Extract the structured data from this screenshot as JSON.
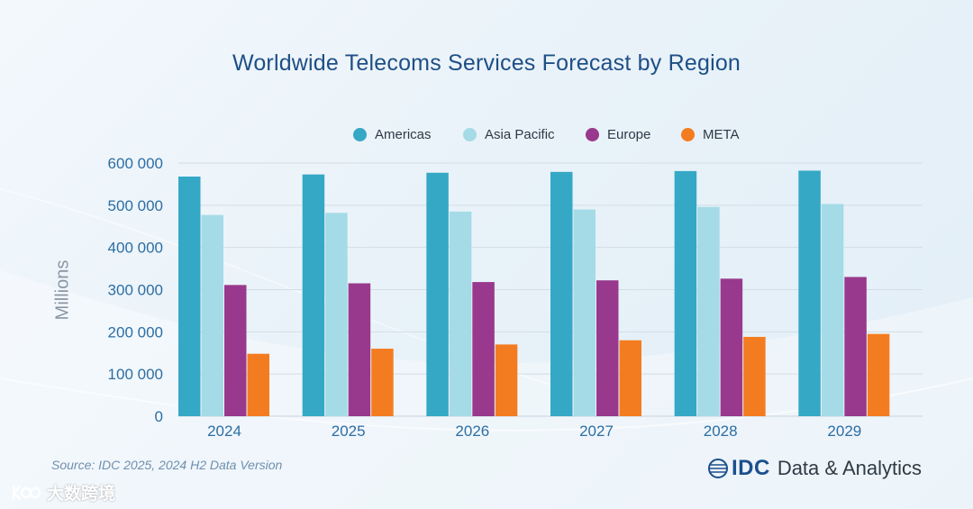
{
  "title": "Worldwide Telecoms Services Forecast by Region",
  "legend": [
    {
      "label": "Americas",
      "color": "#35a8c6"
    },
    {
      "label": "Asia Pacific",
      "color": "#a4dbe6"
    },
    {
      "label": "Europe",
      "color": "#98398d"
    },
    {
      "label": "META",
      "color": "#f47c20"
    }
  ],
  "footer": {
    "source": "Source: IDC 2025, 2024 H2 Data Version",
    "brand_name": "IDC",
    "brand_tagline": "Data & Analytics",
    "watermark": "大数跨境"
  },
  "chart_data": {
    "type": "bar",
    "title": "Worldwide Telecoms Services Forecast by Region",
    "ylabel": "Millions",
    "xlabel": "",
    "categories": [
      "2024",
      "2025",
      "2026",
      "2027",
      "2028",
      "2029"
    ],
    "ylim": [
      0,
      600000
    ],
    "yticks": [
      0,
      100000,
      200000,
      300000,
      400000,
      500000,
      600000
    ],
    "ytick_labels": [
      "0",
      "100 000",
      "200 000",
      "300 000",
      "400 000",
      "500 000",
      "600 000"
    ],
    "grid": true,
    "legend_position": "top",
    "series": [
      {
        "name": "Americas",
        "color": "#35a8c6",
        "values": [
          568000,
          573000,
          577000,
          579000,
          581000,
          582000
        ]
      },
      {
        "name": "Asia Pacific",
        "color": "#a4dbe6",
        "values": [
          477000,
          482000,
          485000,
          490000,
          496000,
          503000
        ]
      },
      {
        "name": "Europe",
        "color": "#98398d",
        "values": [
          311000,
          315000,
          318000,
          322000,
          326000,
          330000
        ]
      },
      {
        "name": "META",
        "color": "#f47c20",
        "values": [
          148000,
          160000,
          170000,
          180000,
          188000,
          195000
        ]
      }
    ]
  }
}
